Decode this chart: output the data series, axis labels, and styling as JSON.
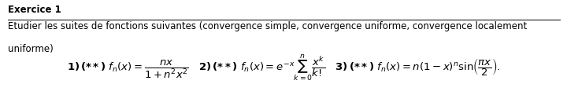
{
  "title": "Exercice 1",
  "line1": "Etudier les suites de fonctions suivantes (convergence simple, convergence uniforme, convergence localement",
  "line2": "uniforme)",
  "bg_color": "#ffffff",
  "text_color": "#000000",
  "title_fontsize": 8.5,
  "body_fontsize": 8.5,
  "formula_fontsize": 9.5,
  "fig_width": 7.2,
  "fig_height": 1.21,
  "dpi": 100
}
